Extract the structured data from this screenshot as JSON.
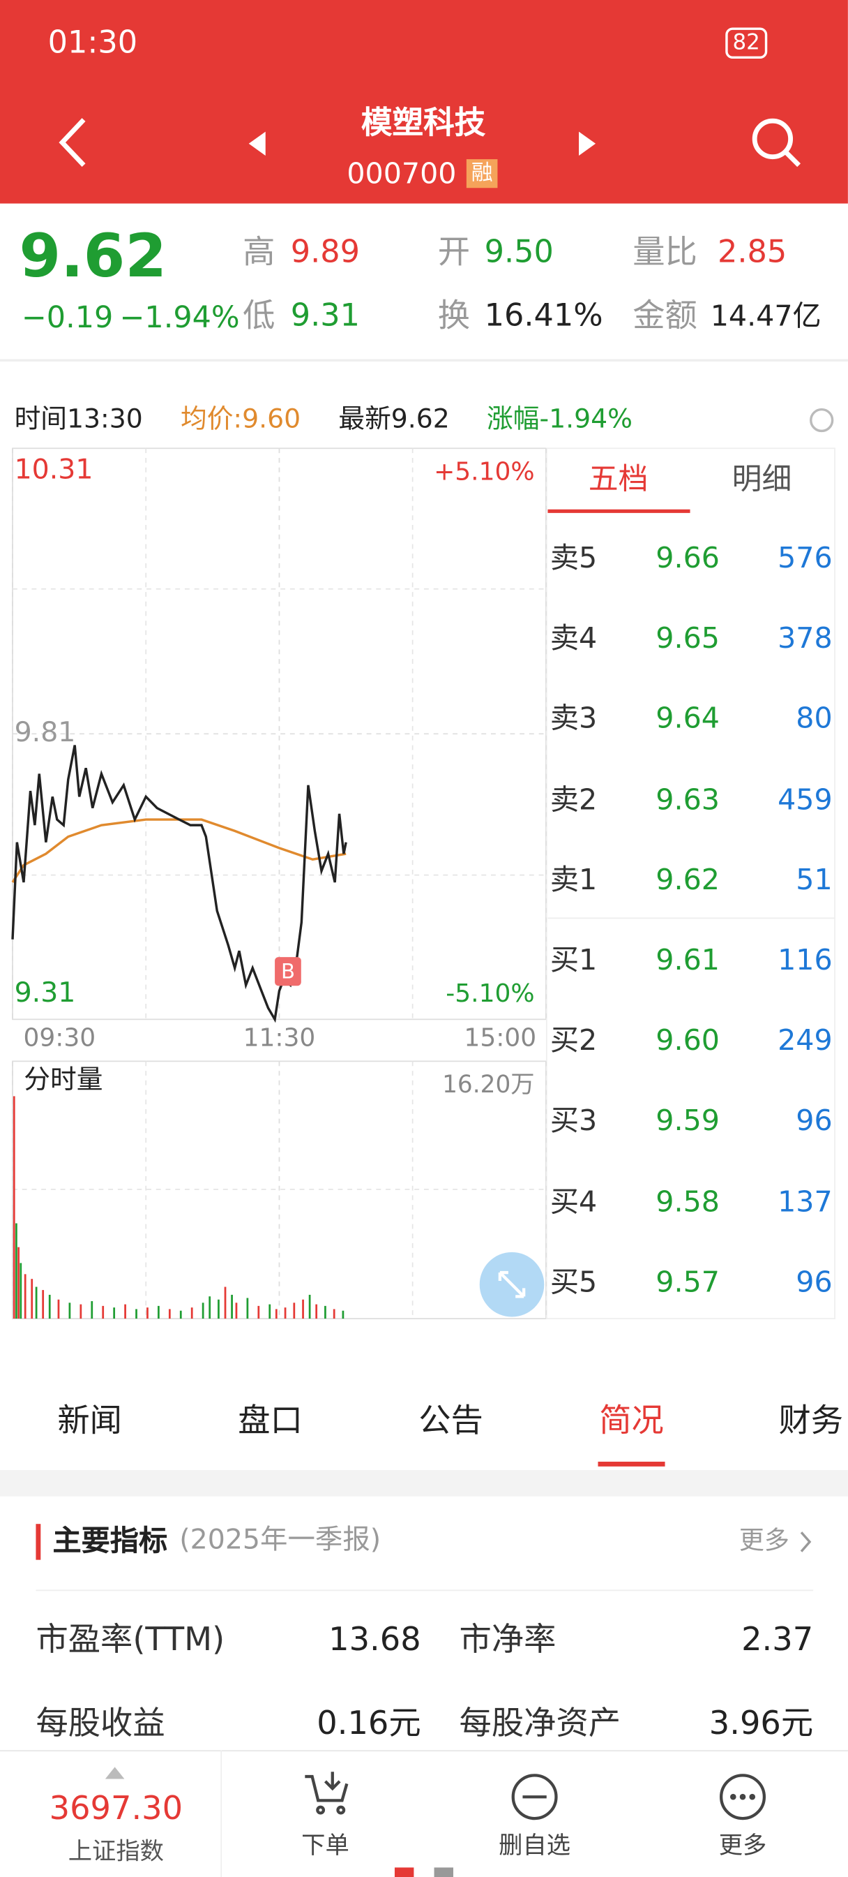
{
  "status": {
    "time": "01:30",
    "battery": "82"
  },
  "header": {
    "title": "模塑科技",
    "code": "000700",
    "tag": "融"
  },
  "quote": {
    "price": "9.62",
    "change": "−0.19",
    "change_pct": "−1.94%",
    "fields": [
      {
        "label": "高",
        "value": "9.89"
      },
      {
        "label": "开",
        "value": "9.50"
      },
      {
        "label": "量比",
        "value": "2.85"
      },
      {
        "label": "低",
        "value": "9.31"
      },
      {
        "label": "换",
        "value": "16.41%"
      },
      {
        "label": "金额",
        "value": "14.47亿"
      }
    ]
  },
  "info_bar": {
    "time": "时间13:30",
    "avg": "均价:9.60",
    "latest": "最新9.62",
    "change": "涨幅-1.94%"
  },
  "intraday": {
    "xlim": [
      0,
      240
    ],
    "ylim": [
      9.31,
      10.31
    ],
    "xticks": [
      {
        "value": 0,
        "label": "09:30"
      },
      {
        "value": 120,
        "label": "11:30"
      },
      {
        "value": 240,
        "label": "15:00"
      }
    ],
    "yticks": [
      9.31,
      9.81,
      10.31
    ],
    "pct_top": "+5.10%",
    "pct_bottom": "-5.10%",
    "marker": "B",
    "price": {
      "color": "#222222",
      "x": [
        0,
        2,
        5,
        8,
        10,
        12,
        15,
        18,
        20,
        23,
        25,
        28,
        30,
        33,
        36,
        40,
        45,
        50,
        55,
        60,
        65,
        70,
        75,
        80,
        85,
        87,
        92,
        97,
        100,
        102,
        105,
        108,
        112,
        115,
        118,
        120,
        122,
        125,
        128,
        130,
        133,
        136,
        139,
        142,
        145,
        147,
        149,
        150
      ],
      "values": [
        9.45,
        9.62,
        9.55,
        9.71,
        9.65,
        9.74,
        9.62,
        9.7,
        9.66,
        9.65,
        9.73,
        9.79,
        9.7,
        9.75,
        9.68,
        9.74,
        9.69,
        9.72,
        9.66,
        9.7,
        9.68,
        9.67,
        9.66,
        9.65,
        9.65,
        9.63,
        9.5,
        9.44,
        9.4,
        9.43,
        9.37,
        9.4,
        9.36,
        9.33,
        9.31,
        9.36,
        9.38,
        9.37,
        9.42,
        9.48,
        9.72,
        9.64,
        9.57,
        9.6,
        9.55,
        9.67,
        9.6,
        9.62
      ]
    },
    "avg": {
      "color": "#e08a2e",
      "x": [
        0,
        5,
        15,
        25,
        40,
        60,
        85,
        100,
        120,
        135,
        150
      ],
      "values": [
        9.55,
        9.58,
        9.6,
        9.63,
        9.65,
        9.66,
        9.66,
        9.64,
        9.61,
        9.59,
        9.6
      ]
    }
  },
  "volume": {
    "title": "分时量",
    "ylim": [
      0,
      16.2
    ],
    "yticks": [
      {
        "value": 16.2,
        "label": "16.20万"
      }
    ],
    "x": [
      0,
      1,
      2,
      3,
      5,
      8,
      10,
      13,
      16,
      20,
      25,
      30,
      35,
      40,
      45,
      50,
      55,
      60,
      65,
      70,
      75,
      80,
      85,
      88,
      92,
      95,
      98,
      100,
      105,
      110,
      115,
      118,
      122,
      126,
      130,
      133,
      136,
      140,
      144,
      148
    ],
    "values": [
      14.0,
      6.0,
      4.5,
      3.5,
      2.8,
      2.5,
      2.0,
      1.8,
      1.5,
      1.2,
      1.0,
      0.9,
      1.1,
      0.8,
      0.7,
      0.9,
      0.6,
      0.7,
      0.8,
      0.6,
      0.5,
      0.7,
      1.0,
      1.4,
      1.2,
      2.0,
      1.5,
      1.0,
      1.3,
      0.8,
      0.9,
      0.6,
      0.7,
      1.0,
      1.2,
      1.5,
      0.9,
      0.8,
      0.6,
      0.5
    ],
    "colors": [
      "#e53935",
      "#1f9d32",
      "#e53935",
      "#1f9d32",
      "#e53935",
      "#e53935",
      "#1f9d32",
      "#e53935",
      "#1f9d32",
      "#e53935",
      "#1f9d32",
      "#e53935",
      "#1f9d32",
      "#e53935",
      "#1f9d32",
      "#e53935",
      "#1f9d32",
      "#e53935",
      "#1f9d32",
      "#e53935",
      "#1f9d32",
      "#e53935",
      "#1f9d32",
      "#1f9d32",
      "#1f9d32",
      "#e53935",
      "#1f9d32",
      "#e53935",
      "#1f9d32",
      "#e53935",
      "#1f9d32",
      "#e53935",
      "#e53935",
      "#e53935",
      "#e53935",
      "#1f9d32",
      "#e53935",
      "#1f9d32",
      "#e53935",
      "#1f9d32"
    ]
  },
  "order_book": {
    "tabs": [
      "五档",
      "明细"
    ],
    "rows": [
      [
        "卖5",
        "9.66",
        "576"
      ],
      [
        "卖4",
        "9.65",
        "378"
      ],
      [
        "卖3",
        "9.64",
        "80"
      ],
      [
        "卖2",
        "9.63",
        "459"
      ],
      [
        "卖1",
        "9.62",
        "51"
      ],
      [
        "买1",
        "9.61",
        "116"
      ],
      [
        "买2",
        "9.60",
        "249"
      ],
      [
        "买3",
        "9.59",
        "96"
      ],
      [
        "买4",
        "9.58",
        "137"
      ],
      [
        "买5",
        "9.57",
        "96"
      ]
    ]
  },
  "tabs": [
    "新闻",
    "盘口",
    "公告",
    "简况",
    "财务"
  ],
  "section": {
    "title": "主要指标",
    "period": "(2025年一季报)",
    "more": "更多",
    "metrics": [
      [
        {
          "label": "市盈率(TTM)",
          "value": "13.68"
        },
        {
          "label": "市净率",
          "value": "2.37"
        }
      ],
      [
        {
          "label": "每股收益",
          "value": "0.16元"
        },
        {
          "label": "每股净资产",
          "value": "3.96元"
        }
      ]
    ]
  },
  "bottom_nav": {
    "index_value": "3697.30",
    "index_name": "上证指数",
    "items": [
      "下单",
      "删自选",
      "更多"
    ]
  }
}
